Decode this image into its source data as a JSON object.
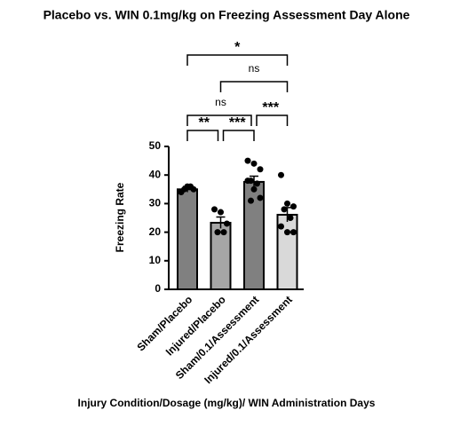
{
  "chart_data": {
    "type": "bar",
    "title": "Placebo vs. WIN 0.1mg/kg on Freezing Assessment Day Alone",
    "x_label": "Injury Condition/Dosage (mg/kg)/ WIN Administration Days",
    "y_label": "Freezing Rate",
    "categories": [
      "Sham/Placebo",
      "Injured/Placebo",
      "Sham/0.1/Assessment",
      "Injured/0.1/Assessment"
    ],
    "values": [
      35,
      23.3,
      37.6,
      26.1
    ],
    "errors": [
      1,
      2,
      2,
      2.5
    ],
    "colors": [
      "#808080",
      "#a6a6a6",
      "#808080",
      "#d9d9d9"
    ],
    "points": [
      [
        34,
        36,
        35,
        35,
        36
      ],
      [
        28,
        27,
        23,
        20,
        20
      ],
      [
        45,
        44,
        42,
        38,
        37,
        38,
        35,
        32,
        31
      ],
      [
        40,
        30,
        29,
        28,
        25,
        22,
        20,
        20
      ]
    ],
    "ylim": [
      0,
      50
    ],
    "yticks": [
      0,
      10,
      20,
      30,
      40,
      50
    ],
    "significance": [
      {
        "label": "**",
        "between": [
          "Sham/Placebo",
          "Injured/Placebo"
        ]
      },
      {
        "label": "***",
        "between": [
          "Injured/Placebo",
          "Sham/0.1/Assessment"
        ]
      },
      {
        "label": "ns",
        "between": [
          "Sham/Placebo",
          "Sham/0.1/Assessment"
        ]
      },
      {
        "label": "***",
        "between": [
          "Sham/0.1/Assessment",
          "Injured/0.1/Assessment"
        ]
      },
      {
        "label": "ns",
        "between": [
          "Injured/Placebo",
          "Injured/0.1/Assessment"
        ]
      },
      {
        "label": "*",
        "between": [
          "Sham/Placebo",
          "Injured/0.1/Assessment"
        ]
      }
    ]
  }
}
